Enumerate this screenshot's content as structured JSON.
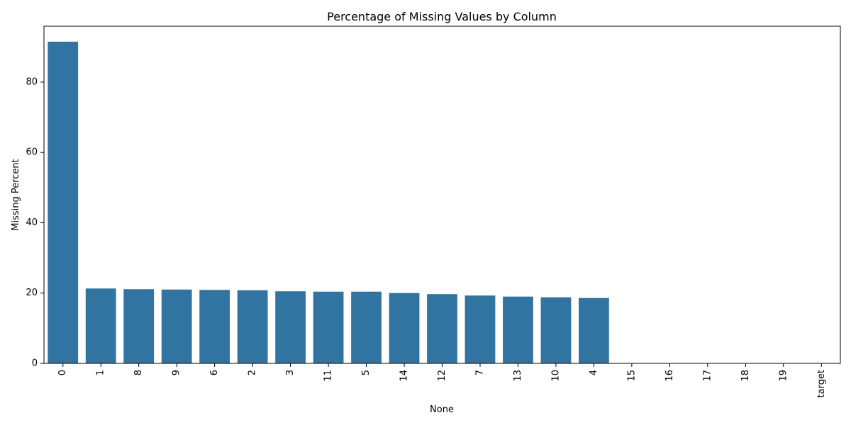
{
  "chart_data": {
    "type": "bar",
    "title": "Percentage of Missing Values by Column",
    "xlabel": "None",
    "ylabel": "Missing Percent",
    "categories": [
      "0",
      "1",
      "8",
      "9",
      "6",
      "2",
      "3",
      "11",
      "5",
      "14",
      "12",
      "7",
      "13",
      "10",
      "4",
      "15",
      "16",
      "17",
      "18",
      "19",
      "target"
    ],
    "values": [
      91.5,
      21.3,
      21.1,
      21.0,
      20.9,
      20.8,
      20.5,
      20.4,
      20.4,
      20.0,
      19.7,
      19.3,
      19.0,
      18.8,
      18.6,
      0,
      0,
      0,
      0,
      0,
      0
    ],
    "ylim": [
      0,
      95.9
    ],
    "yticks": [
      0,
      20,
      40,
      60,
      80
    ],
    "x_tick_rotation": 90,
    "bar_color": "#3274a1",
    "grid": false,
    "legend": "none"
  }
}
